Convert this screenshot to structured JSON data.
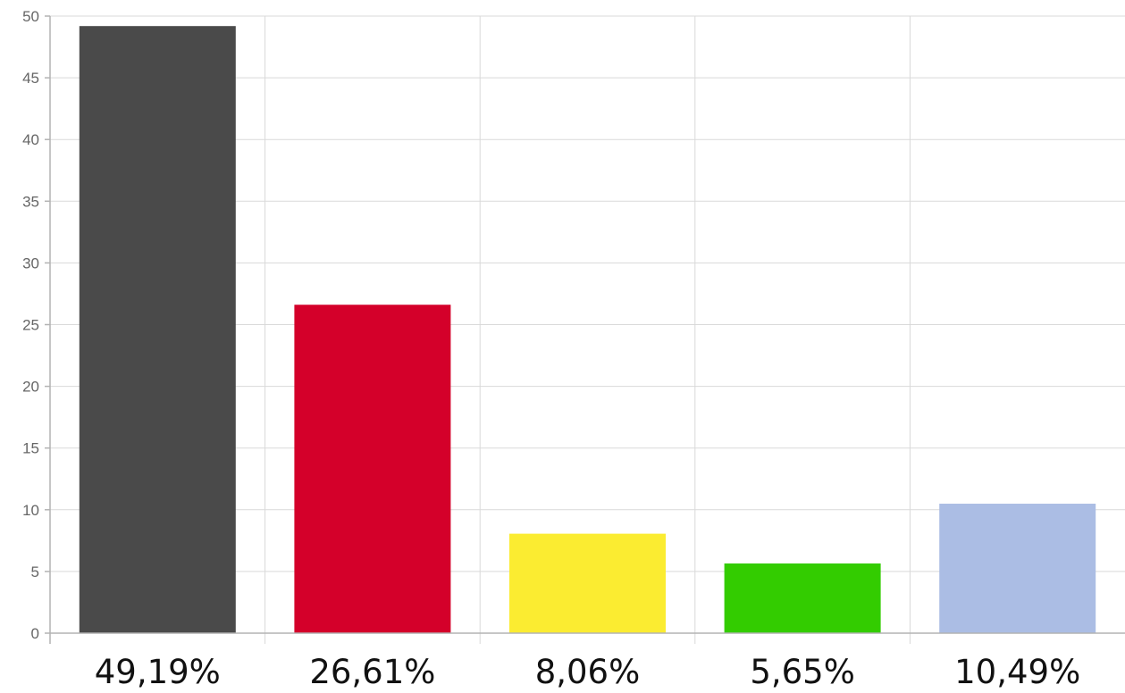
{
  "chart_data": {
    "type": "bar",
    "categories": [
      "49,19%",
      "26,61%",
      "8,06%",
      "5,65%",
      "10,49%"
    ],
    "values": [
      49.19,
      26.61,
      8.06,
      5.65,
      10.49
    ],
    "bar_colors": [
      "#4a4a4a",
      "#d4002a",
      "#fbec31",
      "#33cc00",
      "#abbde4"
    ],
    "title": "",
    "xlabel": "",
    "ylabel": "",
    "ylim": [
      0,
      50
    ],
    "yticks": [
      "0",
      "5",
      "10",
      "15",
      "20",
      "25",
      "30",
      "35",
      "40",
      "45",
      "50"
    ],
    "grid": true,
    "legend": "none"
  }
}
